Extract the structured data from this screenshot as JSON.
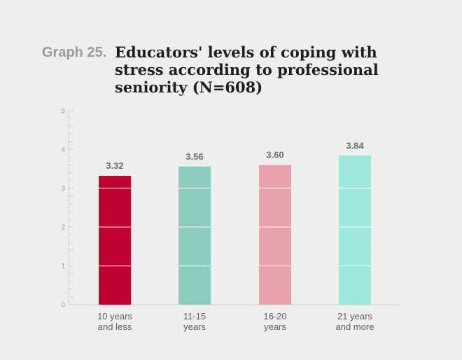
{
  "header": {
    "graph_label": "Graph 25.",
    "title": "Educators' levels of coping with stress according to professional seniority (N=608)"
  },
  "colors": {
    "background": "#eeeeec",
    "axis": "#cfcfcf",
    "bars": [
      "#c10230",
      "#8ccbc0",
      "#e8a2ad",
      "#9de8da"
    ]
  },
  "chart_data": {
    "type": "bar",
    "title": "Educators' levels of coping with stress according to professional seniority (N=608)",
    "categories": [
      [
        "10 years",
        "and less"
      ],
      [
        "11-15",
        "years"
      ],
      [
        "16-20",
        "years"
      ],
      [
        "21 years",
        "and more"
      ]
    ],
    "values": [
      3.32,
      3.56,
      3.6,
      3.84
    ],
    "value_labels": [
      "3.32",
      "3.56",
      "3.60",
      "3.84"
    ],
    "xlabel": "",
    "ylabel": "",
    "ylim": [
      0,
      5
    ],
    "yticks": [
      0,
      1,
      2,
      3,
      4,
      5
    ],
    "grid": false
  }
}
